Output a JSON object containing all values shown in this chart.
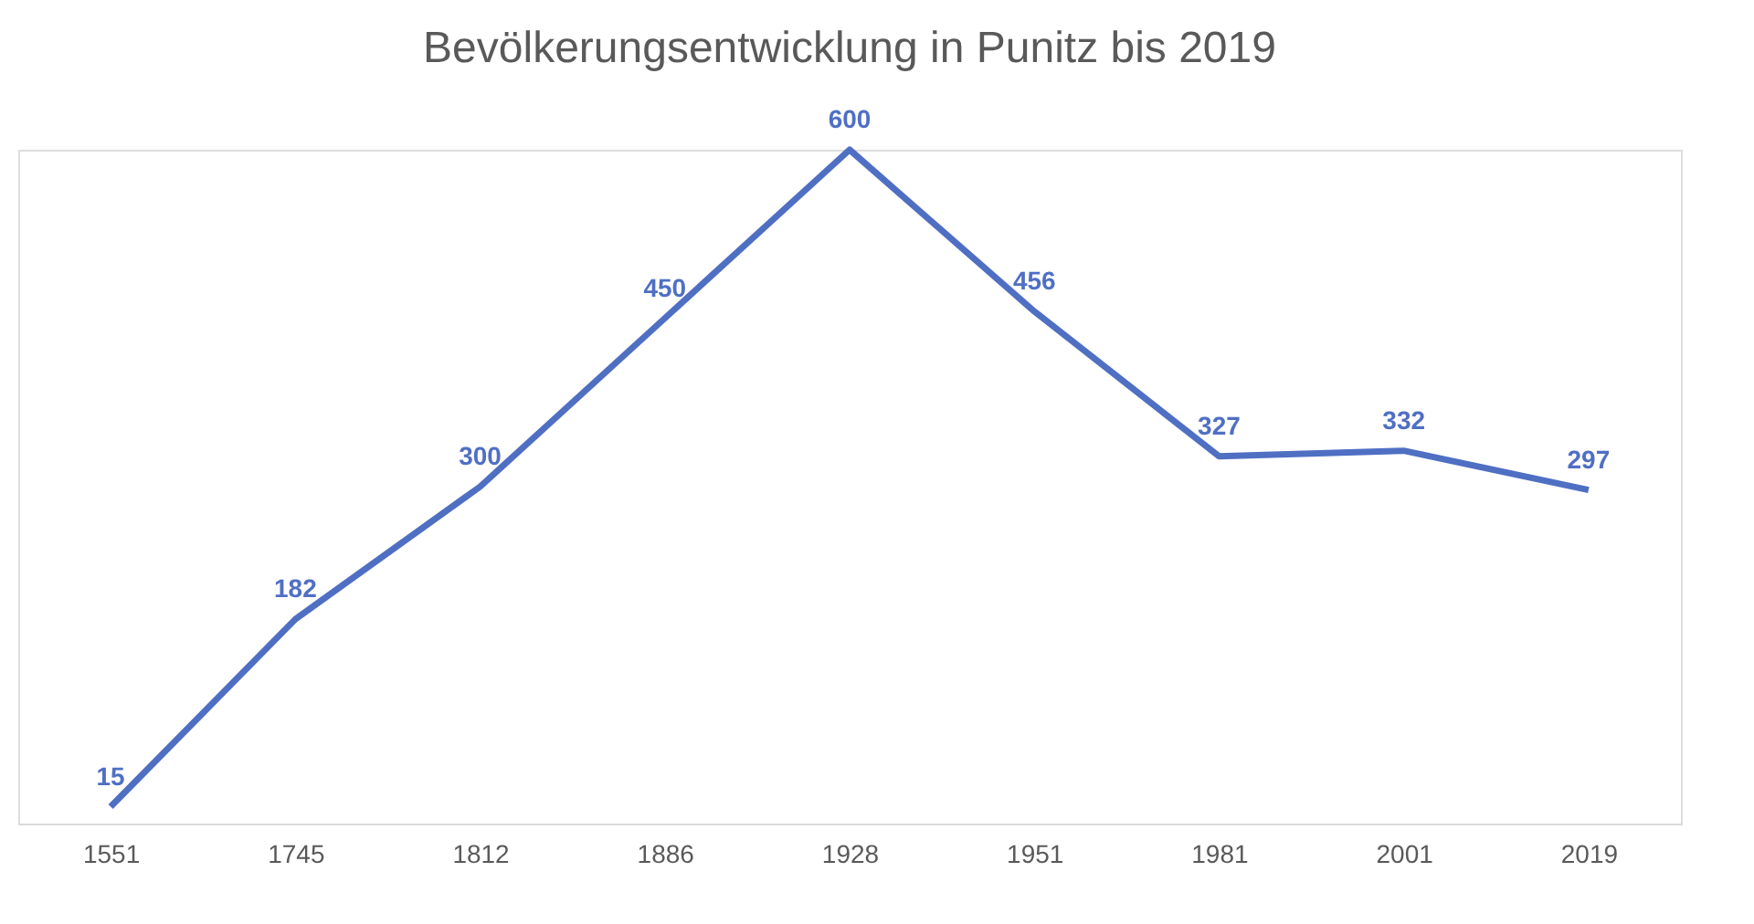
{
  "chart_data": {
    "type": "line",
    "title": "Bevölkerungsentwicklung in Punitz bis 2019",
    "categories": [
      "1551",
      "1745",
      "1812",
      "1886",
      "1928",
      "1951",
      "1981",
      "2001",
      "2019"
    ],
    "series": [
      {
        "color": "#4f6fc3",
        "values": [
          15,
          182,
          300,
          450,
          600,
          456,
          327,
          332,
          297
        ]
      }
    ],
    "data_labels": true,
    "grid": false,
    "legend": false,
    "marker": "none",
    "line_style": "solid",
    "tick_labels": "x"
  }
}
